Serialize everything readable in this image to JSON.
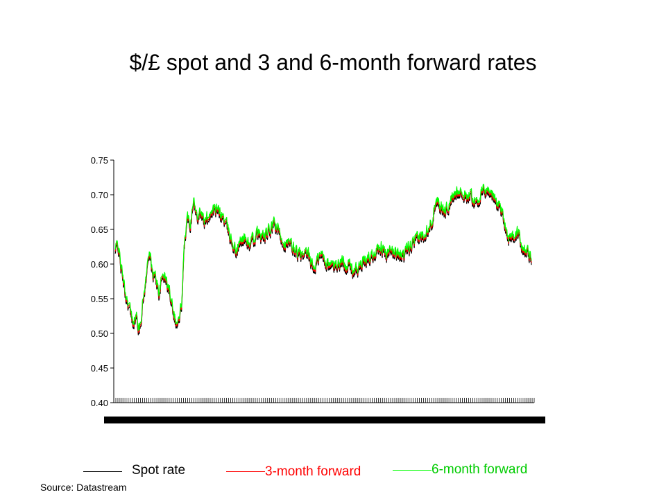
{
  "chart_data": {
    "type": "line",
    "title": "$/£ spot and 3 and 6-month forward rates",
    "ylim": [
      0.4,
      0.75
    ],
    "yticks": [
      "0.75",
      "0.70",
      "0.65",
      "0.60",
      "0.55",
      "0.50",
      "0.45",
      "0.40"
    ],
    "x_tick_count": 205,
    "x_tick_labels_legible": false,
    "grid": false,
    "legend_placement": "bottom",
    "series": [
      {
        "name": "Spot rate",
        "color": "#000000",
        "offset": -0.006
      },
      {
        "name": "3-month forward",
        "color": "#ff0000",
        "offset": -0.003
      },
      {
        "name": "6-month forward",
        "color": "#00ff00",
        "offset": 0.0
      }
    ],
    "base_path": [
      [
        0,
        0.62
      ],
      [
        4,
        0.632
      ],
      [
        8,
        0.6
      ],
      [
        14,
        0.56
      ],
      [
        20,
        0.54
      ],
      [
        24,
        0.52
      ],
      [
        30,
        0.525
      ],
      [
        34,
        0.505
      ],
      [
        38,
        0.54
      ],
      [
        44,
        0.585
      ],
      [
        48,
        0.625
      ],
      [
        52,
        0.59
      ],
      [
        58,
        0.58
      ],
      [
        62,
        0.56
      ],
      [
        68,
        0.59
      ],
      [
        74,
        0.57
      ],
      [
        80,
        0.55
      ],
      [
        86,
        0.515
      ],
      [
        90,
        0.52
      ],
      [
        94,
        0.55
      ],
      [
        98,
        0.64
      ],
      [
        102,
        0.67
      ],
      [
        106,
        0.662
      ],
      [
        110,
        0.7
      ],
      [
        114,
        0.672
      ],
      [
        120,
        0.68
      ],
      [
        126,
        0.66
      ],
      [
        130,
        0.67
      ],
      [
        136,
        0.68
      ],
      [
        144,
        0.678
      ],
      [
        152,
        0.67
      ],
      [
        160,
        0.648
      ],
      [
        170,
        0.62
      ],
      [
        180,
        0.64
      ],
      [
        190,
        0.63
      ],
      [
        200,
        0.645
      ],
      [
        210,
        0.64
      ],
      [
        218,
        0.65
      ],
      [
        224,
        0.66
      ],
      [
        232,
        0.645
      ],
      [
        240,
        0.63
      ],
      [
        248,
        0.628
      ],
      [
        256,
        0.62
      ],
      [
        264,
        0.61
      ],
      [
        272,
        0.615
      ],
      [
        280,
        0.595
      ],
      [
        286,
        0.61
      ],
      [
        292,
        0.615
      ],
      [
        300,
        0.6
      ],
      [
        310,
        0.6
      ],
      [
        320,
        0.605
      ],
      [
        330,
        0.6
      ],
      [
        338,
        0.59
      ],
      [
        346,
        0.6
      ],
      [
        356,
        0.61
      ],
      [
        366,
        0.62
      ],
      [
        374,
        0.63
      ],
      [
        382,
        0.612
      ],
      [
        390,
        0.62
      ],
      [
        398,
        0.62
      ],
      [
        406,
        0.612
      ],
      [
        414,
        0.625
      ],
      [
        420,
        0.63
      ],
      [
        428,
        0.64
      ],
      [
        434,
        0.645
      ],
      [
        438,
        0.652
      ],
      [
        446,
        0.665
      ],
      [
        452,
        0.7
      ],
      [
        456,
        0.69
      ],
      [
        460,
        0.68
      ],
      [
        466,
        0.68
      ],
      [
        472,
        0.692
      ],
      [
        478,
        0.7
      ],
      [
        484,
        0.712
      ],
      [
        490,
        0.7
      ],
      [
        496,
        0.702
      ],
      [
        502,
        0.7
      ],
      [
        508,
        0.69
      ],
      [
        514,
        0.7
      ],
      [
        520,
        0.708
      ],
      [
        526,
        0.708
      ],
      [
        532,
        0.7
      ],
      [
        538,
        0.69
      ],
      [
        544,
        0.68
      ],
      [
        550,
        0.655
      ],
      [
        554,
        0.64
      ],
      [
        560,
        0.642
      ],
      [
        566,
        0.645
      ],
      [
        570,
        0.638
      ],
      [
        574,
        0.628
      ],
      [
        578,
        0.62
      ],
      [
        582,
        0.615
      ],
      [
        586,
        0.61
      ]
    ],
    "base_path_x_range": [
      0,
      586
    ]
  },
  "legend": {
    "spot_label": "Spot rate",
    "fwd3_label": "3-month forward",
    "fwd6_label": "6-month forward"
  },
  "source": "Source: Datastream"
}
